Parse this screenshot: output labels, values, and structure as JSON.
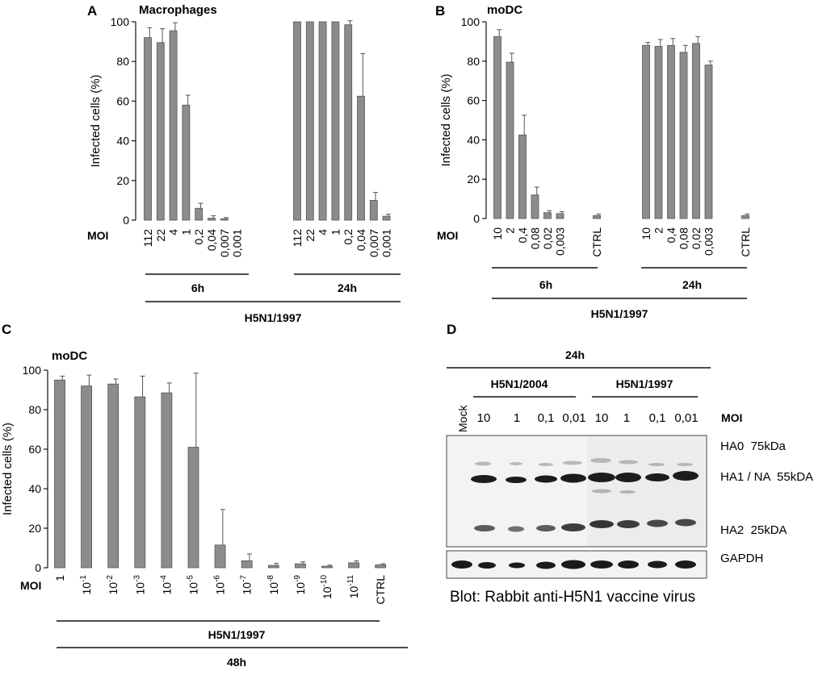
{
  "colors": {
    "bar": "#8c8c8c",
    "bar_stroke": "#555555",
    "axis": "#111111",
    "blot_bg": "#f2f2f2",
    "band": "#1c1c1c"
  },
  "chart_data": [
    {
      "panel": "A",
      "type": "bar",
      "title": "Macrophages",
      "ylabel": "Infected cells (%)",
      "ylim": [
        0,
        100
      ],
      "yticks": [
        "0",
        "20",
        "40",
        "60",
        "80",
        "100"
      ],
      "x_prefix": "MOI",
      "groups": [
        {
          "label": "6h",
          "categories": [
            "112",
            "22",
            "4",
            "1",
            "0,2",
            "0,04",
            "0,007",
            "0,001"
          ],
          "values": [
            92,
            89.5,
            95.5,
            58,
            6,
            1,
            0.7,
            0
          ],
          "errors": [
            5,
            7,
            4,
            5,
            2.5,
            1.2,
            0.6,
            0
          ]
        },
        {
          "label": "24h",
          "categories": [
            "112",
            "22",
            "4",
            "1",
            "0,2",
            "0,04",
            "0,007",
            "0,001"
          ],
          "values": [
            100,
            100,
            100,
            100,
            98.5,
            62.5,
            10,
            2
          ],
          "errors": [
            0,
            0,
            0,
            0,
            2,
            21.5,
            4,
            1
          ]
        }
      ],
      "strain_label": "H5N1/1997"
    },
    {
      "panel": "B",
      "type": "bar",
      "title": "moDC",
      "ylabel": "Infected cells (%)",
      "ylim": [
        0,
        100
      ],
      "yticks": [
        "0",
        "20",
        "40",
        "60",
        "80",
        "100"
      ],
      "x_prefix": "MOI",
      "groups": [
        {
          "label": "6h",
          "categories": [
            "10",
            "2",
            "0,4",
            "0,08",
            "0,02",
            "0,003"
          ],
          "values": [
            92.5,
            79.5,
            42.5,
            12,
            3,
            2.5
          ],
          "errors": [
            3.5,
            4.5,
            10,
            4,
            1,
            1
          ]
        },
        {
          "label": "24h",
          "categories": [
            "10",
            "2",
            "0,4",
            "0,08",
            "0,02",
            "0,003"
          ],
          "values": [
            88,
            87.5,
            88,
            84.5,
            89,
            78
          ],
          "errors": [
            1.5,
            3.5,
            3.5,
            3.5,
            3.5,
            2
          ]
        }
      ],
      "controls": [
        {
          "label": "CTRL",
          "value": 1.5,
          "error": 0.8
        },
        {
          "label": "CTRL",
          "value": 1.5,
          "error": 0.8
        }
      ],
      "strain_label": "H5N1/1997"
    },
    {
      "panel": "C",
      "type": "bar",
      "title": "moDC",
      "ylabel": "Infected cells (%)",
      "ylim": [
        0,
        100
      ],
      "yticks": [
        "0",
        "20",
        "40",
        "60",
        "80",
        "100"
      ],
      "x_prefix": "MOI",
      "categories": [
        {
          "base": "1",
          "exp": ""
        },
        {
          "base": "10",
          "exp": "-1"
        },
        {
          "base": "10",
          "exp": "-2"
        },
        {
          "base": "10",
          "exp": "-3"
        },
        {
          "base": "10",
          "exp": "-4"
        },
        {
          "base": "10",
          "exp": "-5"
        },
        {
          "base": "10",
          "exp": "-6"
        },
        {
          "base": "10",
          "exp": "-7"
        },
        {
          "base": "10",
          "exp": "-8"
        },
        {
          "base": "10",
          "exp": "-9"
        },
        {
          "base": "10",
          "exp": "-10"
        },
        {
          "base": "10",
          "exp": "-11"
        },
        {
          "base": "CTRL",
          "exp": ""
        }
      ],
      "values": [
        95,
        92,
        93,
        86.5,
        88.5,
        61,
        11.5,
        3.5,
        1.2,
        2,
        0.8,
        2.5,
        1.5
      ],
      "errors": [
        2,
        5.5,
        2.5,
        10.5,
        5,
        37.5,
        18,
        3.5,
        1,
        1,
        0.5,
        1,
        0.5
      ],
      "strain_label": "H5N1/1997",
      "time_label": "48h"
    }
  ],
  "panel_letters": {
    "a": "A",
    "b": "B",
    "c": "C",
    "d": "D"
  },
  "blot": {
    "time_label": "24h",
    "strains": [
      "H5N1/2004",
      "H5N1/1997"
    ],
    "lanes": [
      "Mock",
      "10",
      "1",
      "0,1",
      "0,01",
      "10",
      "1",
      "0,1",
      "0,01"
    ],
    "moi_label": "MOI",
    "band_labels": [
      "HA0  75kDa",
      "HA1 / NA  55kDA",
      "HA2  25kDA",
      "GAPDH"
    ],
    "caption": "Blot: Rabbit anti-H5N1 vaccine virus"
  }
}
